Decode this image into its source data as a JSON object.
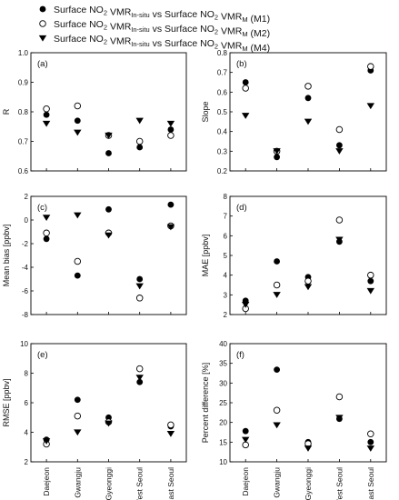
{
  "legend": [
    {
      "marker": "filled-circle",
      "prefix": "Surface NO",
      "sub1": "2",
      "mid1": " VMR",
      "sub2": "In-situ",
      "mid2": " vs Surface NO",
      "sub3": "2",
      "mid3": " VMR",
      "sub4": "M",
      "suffix": " (M1)"
    },
    {
      "marker": "open-circle",
      "prefix": "Surface NO",
      "sub1": "2",
      "mid1": " VMR",
      "sub2": "In-situ",
      "mid2": " vs Surface NO",
      "sub3": "2",
      "mid3": " VMR",
      "sub4": "M",
      "suffix": " (M2)"
    },
    {
      "marker": "filled-triangle-down",
      "prefix": "Surface NO",
      "sub1": "2",
      "mid1": " VMR",
      "sub2": "In-situ",
      "mid2": " vs Surface NO",
      "sub3": "2",
      "mid3": " VMR",
      "sub4": "M",
      "suffix": " (M4)"
    }
  ],
  "chart_data": [
    {
      "type": "scatter",
      "panel": "(a)",
      "ylabel": "R",
      "categories": [
        "Daejeon",
        "Gwangju",
        "Gyeonggi",
        "West Seoul",
        "East Seoul"
      ],
      "ylim": [
        0.6,
        1.0
      ],
      "yticks": [
        "0.6",
        "0.7",
        "0.8",
        "0.9",
        "1.0"
      ],
      "series": [
        {
          "name": "M1",
          "marker": "filled-circle",
          "values": [
            0.79,
            0.77,
            0.66,
            0.68,
            0.74
          ]
        },
        {
          "name": "M2",
          "marker": "open-circle",
          "values": [
            0.81,
            0.82,
            0.72,
            0.7,
            0.72
          ]
        },
        {
          "name": "M4",
          "marker": "filled-triangle-down",
          "values": [
            0.76,
            0.73,
            0.72,
            0.77,
            0.76
          ]
        }
      ]
    },
    {
      "type": "scatter",
      "panel": "(b)",
      "ylabel": "Slope",
      "categories": [
        "Daejeon",
        "Gwangju",
        "Gyeonggi",
        "West Seoul",
        "East Seoul"
      ],
      "ylim": [
        0.2,
        0.8
      ],
      "yticks": [
        "0.2",
        "0.3",
        "0.4",
        "0.5",
        "0.6",
        "0.7",
        "0.8"
      ],
      "series": [
        {
          "name": "M1",
          "marker": "filled-circle",
          "values": [
            0.65,
            0.27,
            0.57,
            0.33,
            0.71
          ]
        },
        {
          "name": "M2",
          "marker": "open-circle",
          "values": [
            0.62,
            0.3,
            0.63,
            0.41,
            0.73
          ]
        },
        {
          "name": "M4",
          "marker": "filled-triangle-down",
          "values": [
            0.48,
            0.3,
            0.45,
            0.3,
            0.53
          ]
        }
      ]
    },
    {
      "type": "scatter",
      "panel": "(c)",
      "ylabel": "Mean bias [ppbv]",
      "categories": [
        "Daejeon",
        "Gwangju",
        "Gyeonggi",
        "West Seoul",
        "East Seoul"
      ],
      "ylim": [
        -8,
        2
      ],
      "yticks": [
        "-8",
        "-6",
        "-4",
        "-2",
        "0",
        "2"
      ],
      "series": [
        {
          "name": "M1",
          "marker": "filled-circle",
          "values": [
            -1.6,
            -4.7,
            0.9,
            -5.0,
            1.3
          ]
        },
        {
          "name": "M2",
          "marker": "open-circle",
          "values": [
            -1.1,
            -3.5,
            -1.1,
            -6.6,
            -0.5
          ]
        },
        {
          "name": "M4",
          "marker": "filled-triangle-down",
          "values": [
            0.2,
            0.4,
            -1.3,
            -5.6,
            -0.6
          ]
        }
      ]
    },
    {
      "type": "scatter",
      "panel": "(d)",
      "ylabel": "MAE [ppbv]",
      "categories": [
        "Daejeon",
        "Gwangju",
        "Gyeonggi",
        "West Seoul",
        "East Seoul"
      ],
      "ylim": [
        2,
        8
      ],
      "yticks": [
        "2",
        "3",
        "4",
        "5",
        "6",
        "7",
        "8"
      ],
      "series": [
        {
          "name": "M1",
          "marker": "filled-circle",
          "values": [
            2.7,
            4.7,
            3.9,
            5.7,
            3.7
          ]
        },
        {
          "name": "M2",
          "marker": "open-circle",
          "values": [
            2.3,
            3.5,
            3.7,
            6.8,
            4.0
          ]
        },
        {
          "name": "M4",
          "marker": "filled-triangle-down",
          "values": [
            2.5,
            3.0,
            3.4,
            5.8,
            3.2
          ]
        }
      ]
    },
    {
      "type": "scatter",
      "panel": "(e)",
      "ylabel": "RMSE [ppbv]",
      "categories": [
        "Daejeon",
        "Gwangju",
        "Gyeonggi",
        "West Seoul",
        "East Seoul"
      ],
      "ylim": [
        2,
        10
      ],
      "yticks": [
        "2",
        "4",
        "6",
        "8",
        "10"
      ],
      "series": [
        {
          "name": "M1",
          "marker": "filled-circle",
          "values": [
            3.5,
            6.2,
            5.0,
            7.4,
            4.4
          ]
        },
        {
          "name": "M2",
          "marker": "open-circle",
          "values": [
            3.2,
            5.1,
            4.7,
            8.3,
            4.5
          ]
        },
        {
          "name": "M4",
          "marker": "filled-triangle-down",
          "values": [
            3.4,
            4.0,
            4.6,
            7.7,
            3.9
          ]
        }
      ]
    },
    {
      "type": "scatter",
      "panel": "(f)",
      "ylabel": "Percent difference [%]",
      "categories": [
        "Daejeon",
        "Gwangju",
        "Gyeonggi",
        "West Seoul",
        "East Seoul"
      ],
      "ylim": [
        10,
        40
      ],
      "yticks": [
        "10",
        "15",
        "20",
        "25",
        "30",
        "35",
        "40"
      ],
      "series": [
        {
          "name": "M1",
          "marker": "filled-circle",
          "values": [
            17.8,
            33.4,
            15.0,
            20.9,
            15.0
          ]
        },
        {
          "name": "M2",
          "marker": "open-circle",
          "values": [
            14.3,
            23.1,
            14.6,
            26.5,
            17.1
          ]
        },
        {
          "name": "M4",
          "marker": "filled-triangle-down",
          "values": [
            15.6,
            19.3,
            13.4,
            21.2,
            13.4
          ]
        }
      ]
    }
  ]
}
